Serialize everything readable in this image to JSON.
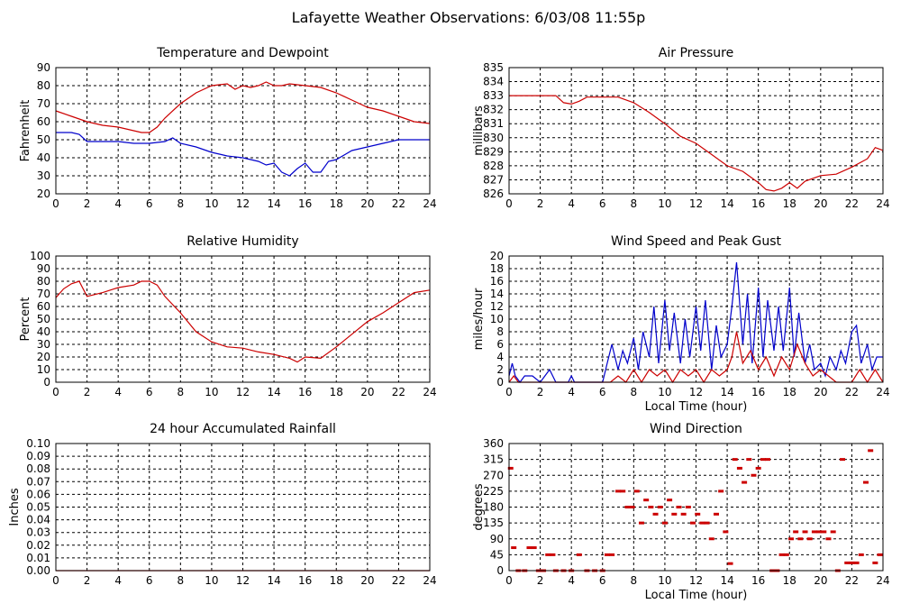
{
  "page_title": "Lafayette Weather Observations: 6/03/08 11:55p",
  "chart_data": [
    {
      "id": "temp",
      "type": "line",
      "title": "Temperature and Dewpoint",
      "ylabel": "Fahrenheit",
      "xlabel": "",
      "xlim": [
        0,
        24
      ],
      "ylim": [
        20,
        90
      ],
      "yticks": [
        20,
        30,
        40,
        50,
        60,
        70,
        80,
        90
      ],
      "xticks": [
        0,
        2,
        4,
        6,
        8,
        10,
        12,
        14,
        16,
        18,
        20,
        22,
        24
      ],
      "grid": true,
      "series": [
        {
          "color": "#cc0000",
          "x": [
            0,
            1,
            2,
            3,
            4,
            5,
            5.5,
            6,
            6.5,
            7,
            8,
            9,
            10,
            11,
            11.5,
            12,
            12.5,
            13,
            13.5,
            14,
            14.5,
            15,
            16,
            17,
            18,
            19,
            20,
            21,
            22,
            23,
            24
          ],
          "y": [
            66,
            63,
            60,
            58,
            57,
            55,
            54,
            54,
            57,
            62,
            70,
            76,
            80,
            81,
            78,
            80,
            79,
            80,
            82,
            80,
            80,
            81,
            80,
            79,
            76,
            72,
            68,
            66,
            63,
            60,
            59
          ]
        },
        {
          "color": "#0000cc",
          "x": [
            0,
            1,
            1.5,
            2,
            3,
            4,
            5,
            6,
            7,
            7.5,
            8,
            9,
            10,
            10.5,
            11,
            12,
            13,
            13.5,
            14,
            14.5,
            15,
            15.5,
            16,
            16.5,
            17,
            17.5,
            18,
            19,
            20,
            21,
            22,
            23,
            24
          ],
          "y": [
            54,
            54,
            53,
            49,
            49,
            49,
            48,
            48,
            49,
            51,
            48,
            46,
            43,
            42,
            41,
            40,
            38,
            36,
            37,
            32,
            30,
            34,
            37,
            32,
            32,
            38,
            39,
            44,
            46,
            48,
            50,
            50,
            50
          ]
        }
      ]
    },
    {
      "id": "pressure",
      "type": "line",
      "title": "Air Pressure",
      "ylabel": "millibars",
      "xlabel": "",
      "xlim": [
        0,
        24
      ],
      "ylim": [
        826,
        835
      ],
      "yticks": [
        826,
        827,
        828,
        829,
        830,
        831,
        832,
        833,
        834,
        835
      ],
      "xticks": [
        0,
        2,
        4,
        6,
        8,
        10,
        12,
        14,
        16,
        18,
        20,
        22,
        24
      ],
      "grid": true,
      "series": [
        {
          "color": "#cc0000",
          "x": [
            0,
            1,
            2,
            3,
            3.5,
            4,
            4.5,
            5,
            6,
            7,
            8,
            9,
            10,
            11,
            12,
            13,
            14,
            15,
            16,
            16.5,
            17,
            17.5,
            18,
            18.5,
            19,
            20,
            21,
            22,
            23,
            23.5,
            24
          ],
          "y": [
            833,
            833,
            833,
            833,
            832.5,
            832.4,
            832.6,
            832.9,
            832.9,
            832.9,
            832.5,
            831.8,
            831,
            830.1,
            829.6,
            828.8,
            828,
            827.6,
            826.8,
            826.3,
            826.2,
            826.4,
            826.8,
            826.4,
            826.9,
            827.3,
            827.4,
            827.9,
            828.5,
            829.3,
            829.1
          ]
        }
      ]
    },
    {
      "id": "humidity",
      "type": "line",
      "title": "Relative Humidity",
      "ylabel": "Percent",
      "xlabel": "",
      "xlim": [
        0,
        24
      ],
      "ylim": [
        0,
        100
      ],
      "yticks": [
        0,
        10,
        20,
        30,
        40,
        50,
        60,
        70,
        80,
        90,
        100
      ],
      "xticks": [
        0,
        2,
        4,
        6,
        8,
        10,
        12,
        14,
        16,
        18,
        20,
        22,
        24
      ],
      "grid": true,
      "series": [
        {
          "color": "#cc0000",
          "x": [
            0,
            0.5,
            1,
            1.5,
            2,
            3,
            4,
            5,
            5.5,
            6,
            6.5,
            7,
            8,
            9,
            10,
            11,
            12,
            13,
            14,
            15,
            15.5,
            16,
            17,
            18,
            19,
            20,
            21,
            22,
            23,
            24
          ],
          "y": [
            67,
            74,
            78,
            80,
            68,
            71,
            75,
            77,
            80,
            80,
            77,
            68,
            55,
            40,
            32,
            28,
            27,
            24,
            22,
            19,
            16,
            20,
            19,
            28,
            38,
            48,
            55,
            63,
            71,
            73
          ]
        }
      ]
    },
    {
      "id": "wind",
      "type": "line",
      "title": "Wind Speed and Peak Gust",
      "ylabel": "miles/hour",
      "xlabel": "Local Time (hour)",
      "xlim": [
        0,
        24
      ],
      "ylim": [
        0,
        20
      ],
      "yticks": [
        0,
        2,
        4,
        6,
        8,
        10,
        12,
        14,
        16,
        18,
        20
      ],
      "xticks": [
        0,
        2,
        4,
        6,
        8,
        10,
        12,
        14,
        16,
        18,
        20,
        22,
        24
      ],
      "grid": true,
      "series": [
        {
          "color": "#0000cc",
          "x": [
            0,
            0.2,
            0.4,
            0.7,
            1,
            1.5,
            2,
            2.3,
            2.6,
            3,
            3.8,
            4,
            4.2,
            5,
            6,
            6.3,
            6.6,
            7,
            7.3,
            7.6,
            8,
            8.3,
            8.6,
            9,
            9.3,
            9.6,
            10,
            10.3,
            10.6,
            11,
            11.3,
            11.6,
            12,
            12.3,
            12.6,
            13,
            13.3,
            13.6,
            14,
            14.3,
            14.6,
            15,
            15.3,
            15.6,
            16,
            16.3,
            16.6,
            17,
            17.3,
            17.6,
            18,
            18.3,
            18.6,
            19,
            19.3,
            19.6,
            20,
            20.3,
            20.6,
            21,
            21.3,
            21.6,
            22,
            22.3,
            22.6,
            23,
            23.3,
            23.6,
            24
          ],
          "y": [
            1,
            3,
            1,
            0,
            1,
            1,
            0,
            1,
            2,
            0,
            0,
            1,
            0,
            0,
            0,
            3,
            6,
            2,
            5,
            3,
            7,
            2,
            8,
            4,
            12,
            3,
            13,
            5,
            11,
            3,
            10,
            4,
            12,
            5,
            13,
            2,
            9,
            4,
            6,
            12,
            19,
            6,
            14,
            3,
            15,
            4,
            13,
            5,
            12,
            5,
            15,
            4,
            11,
            3,
            6,
            2,
            3,
            1,
            4,
            2,
            5,
            3,
            8,
            9,
            3,
            6,
            2,
            4,
            4
          ]
        },
        {
          "color": "#cc0000",
          "x": [
            0,
            0.3,
            0.6,
            1,
            2,
            3,
            4,
            5,
            6,
            6.5,
            7,
            7.5,
            8,
            8.5,
            9,
            9.5,
            10,
            10.5,
            11,
            11.5,
            12,
            12.5,
            13,
            13.5,
            14,
            14.3,
            14.6,
            15,
            15.5,
            16,
            16.5,
            17,
            17.5,
            18,
            18.5,
            19,
            19.5,
            20,
            21,
            22,
            22.5,
            23,
            23.5,
            24
          ],
          "y": [
            0,
            1,
            0,
            0,
            0,
            0,
            0,
            0,
            0,
            0,
            1,
            0,
            2,
            0,
            2,
            1,
            2,
            0,
            2,
            1,
            2,
            0,
            2,
            1,
            2,
            4,
            8,
            3,
            5,
            2,
            4,
            1,
            4,
            2,
            6,
            3,
            1,
            2,
            0,
            0,
            2,
            0,
            2,
            0
          ]
        }
      ]
    },
    {
      "id": "rain",
      "type": "line",
      "title": "24 hour Accumulated Rainfall",
      "ylabel": "Inches",
      "xlabel": "",
      "xlim": [
        0,
        24
      ],
      "ylim": [
        0,
        0.1
      ],
      "yticks": [
        "0.00",
        "0.01",
        "0.02",
        "0.03",
        "0.04",
        "0.05",
        "0.06",
        "0.07",
        "0.08",
        "0.09",
        "0.10"
      ],
      "xticks": [
        0,
        2,
        4,
        6,
        8,
        10,
        12,
        14,
        16,
        18,
        20,
        22,
        24
      ],
      "grid": true,
      "series": [
        {
          "color": "#cc0000",
          "x": [
            0,
            24
          ],
          "y": [
            0,
            0
          ]
        }
      ]
    },
    {
      "id": "direction",
      "type": "scatter",
      "title": "Wind Direction",
      "ylabel": "degrees",
      "xlabel": "Local Time (hour)",
      "xlim": [
        0,
        24
      ],
      "ylim": [
        0,
        360
      ],
      "yticks": [
        0,
        45,
        90,
        135,
        180,
        225,
        270,
        315,
        360
      ],
      "xticks": [
        0,
        2,
        4,
        6,
        8,
        10,
        12,
        14,
        16,
        18,
        20,
        22,
        24
      ],
      "grid": true,
      "series": [
        {
          "color": "#cc0000",
          "x": [
            0.1,
            0.3,
            0.6,
            1,
            1.3,
            1.6,
            1.9,
            2.2,
            2.5,
            2.8,
            3,
            3.5,
            4,
            4.5,
            5,
            5.5,
            6,
            6.3,
            6.6,
            7,
            7.3,
            7.6,
            7.9,
            8.2,
            8.5,
            8.8,
            9.1,
            9.4,
            9.7,
            10,
            10.3,
            10.6,
            10.9,
            11.2,
            11.5,
            11.8,
            12.1,
            12.4,
            12.7,
            13,
            13.3,
            13.6,
            13.9,
            14.2,
            14.5,
            14.8,
            15.1,
            15.4,
            15.7,
            16,
            16.3,
            16.6,
            16.9,
            17.2,
            17.5,
            17.8,
            18.1,
            18.4,
            18.7,
            19,
            19.3,
            19.6,
            19.9,
            20.2,
            20.5,
            20.8,
            21.1,
            21.4,
            21.7,
            22,
            22.3,
            22.6,
            22.9,
            23.2,
            23.5,
            23.8
          ],
          "y": [
            290,
            65,
            0,
            0,
            65,
            65,
            0,
            0,
            45,
            45,
            0,
            0,
            0,
            45,
            0,
            0,
            0,
            45,
            45,
            225,
            225,
            180,
            180,
            225,
            135,
            200,
            180,
            160,
            180,
            135,
            200,
            160,
            180,
            160,
            180,
            135,
            160,
            135,
            135,
            90,
            160,
            225,
            110,
            20,
            315,
            290,
            250,
            315,
            270,
            290,
            315,
            315,
            0,
            0,
            45,
            45,
            90,
            110,
            90,
            110,
            90,
            110,
            110,
            110,
            90,
            110,
            0,
            315,
            22,
            22,
            22,
            45,
            250,
            340,
            22,
            45
          ]
        }
      ]
    }
  ]
}
